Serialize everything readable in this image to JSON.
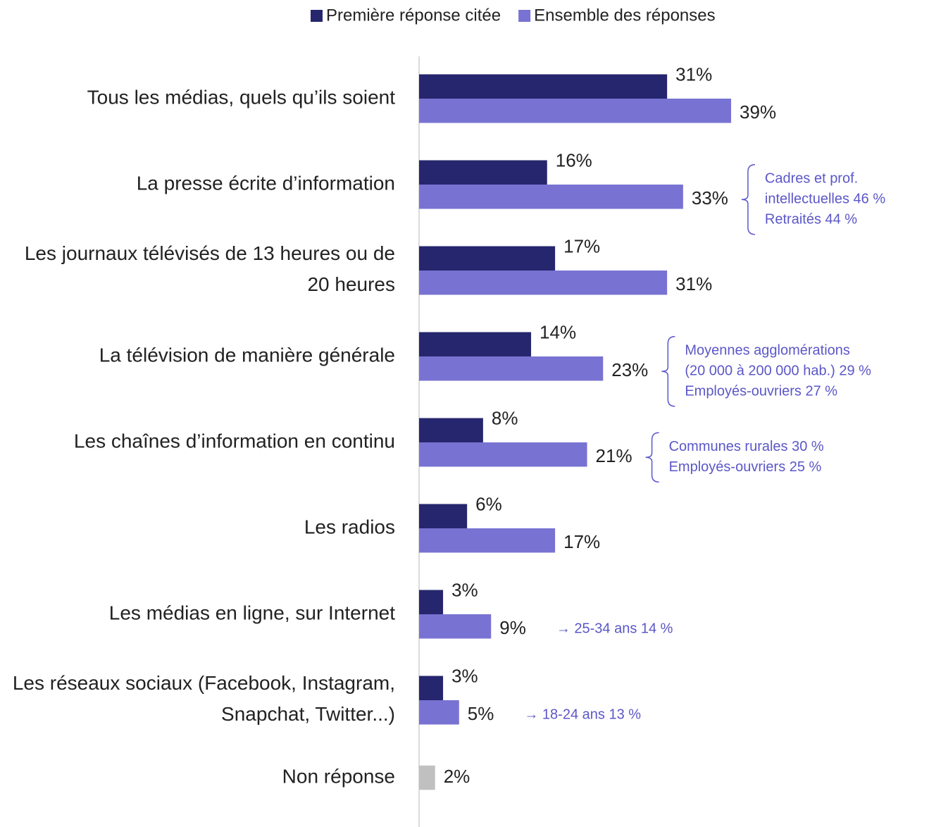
{
  "chart_data": {
    "type": "hbar",
    "categories": [
      "Tous les médias, quels qu’ils soient",
      "La presse écrite d’information",
      "Les journaux télévisés de 13 heures ou de 20 heures",
      "La télévision de manière générale",
      "Les chaînes d’information en continu",
      "Les radios",
      "Les médias en ligne, sur Internet",
      "Les réseaux sociaux (Facebook, Instagram, Snapchat, Twitter...)",
      "Non réponse"
    ],
    "series": [
      {
        "name": "Première réponse citée",
        "color": "#26266e",
        "colors": [
          "#26266e",
          "#26266e",
          "#26266e",
          "#26266e",
          "#26266e",
          "#26266e",
          "#26266e",
          "#26266e",
          "#c0c0c0"
        ],
        "values": [
          31,
          16,
          17,
          14,
          8,
          6,
          3,
          3,
          2
        ],
        "value_labels": [
          "31%",
          "16%",
          "17%",
          "14%",
          "8%",
          "6%",
          "3%",
          "3%",
          "2%"
        ]
      },
      {
        "name": "Ensemble des réponses",
        "color": "#7873d2",
        "values": [
          39,
          33,
          31,
          23,
          21,
          17,
          9,
          5,
          null
        ],
        "value_labels": [
          "39%",
          "33%",
          "31%",
          "23%",
          "21%",
          "17%",
          "9%",
          "5%",
          null
        ]
      }
    ],
    "annotations": [
      null,
      {
        "lines": [
          "Cadres et prof.",
          "intellectuelles 46 %",
          "Retraités 44 %"
        ]
      },
      null,
      {
        "lines": [
          "Moyennes agglomérations",
          "(20 000 à 200 000 hab.) 29 %",
          "Employés-ouvriers 27 %"
        ]
      },
      {
        "lines": [
          "Communes rurales 30 %",
          "Employés-ouvriers 25 %"
        ]
      },
      null,
      {
        "lines": [
          "→ 25-34 ans 14 %"
        ]
      },
      {
        "lines": [
          "→ 18-24 ans 13 %"
        ]
      },
      null
    ],
    "annotation_color": "#5b57c8",
    "legend": "top"
  }
}
